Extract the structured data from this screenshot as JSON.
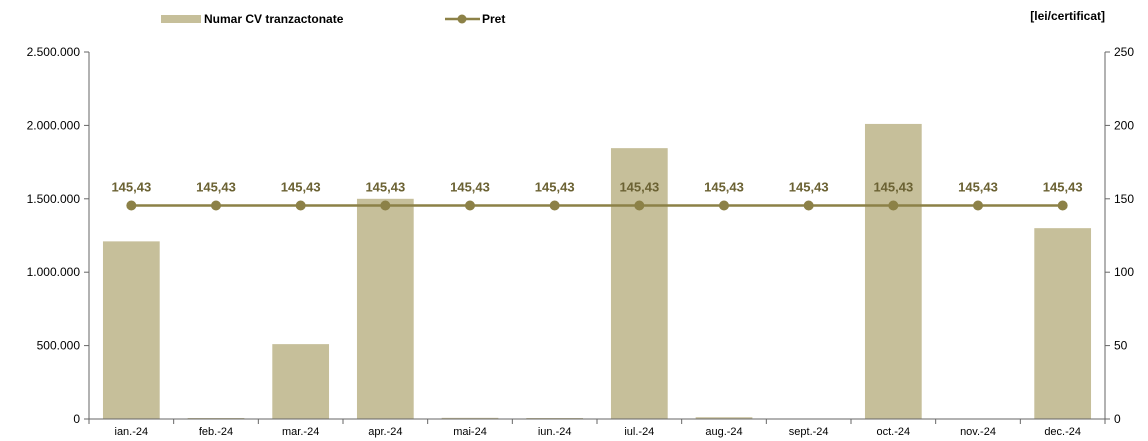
{
  "chart_data": {
    "type": "bar",
    "categories": [
      "ian.-24",
      "feb.-24",
      "mar.-24",
      "apr.-24",
      "mai-24",
      "iun.-24",
      "iul.-24",
      "aug.-24",
      "sept.-24",
      "oct.-24",
      "nov.-24",
      "dec.-24"
    ],
    "series": [
      {
        "name": "Numar CV tranzactonate",
        "type": "bar",
        "axis": "left",
        "color": "#c6bf9a",
        "values": [
          1210000,
          3000,
          510000,
          1500000,
          8000,
          5000,
          1845000,
          12000,
          0,
          2010000,
          0,
          1300000
        ]
      },
      {
        "name": "Pret",
        "type": "line",
        "axis": "right",
        "color": "#8c8147",
        "values": [
          145.43,
          145.43,
          145.43,
          145.43,
          145.43,
          145.43,
          145.43,
          145.43,
          145.43,
          145.43,
          145.43,
          145.43
        ],
        "data_labels": [
          "145,43",
          "145,43",
          "145,43",
          "145,43",
          "145,43",
          "145,43",
          "145,43",
          "145,43",
          "145,43",
          "145,43",
          "145,43",
          "145,43"
        ]
      }
    ],
    "y_left": {
      "lim": [
        0,
        2500000
      ],
      "ticks": [
        0,
        500000,
        1000000,
        1500000,
        2000000,
        2500000
      ],
      "tick_labels": [
        "0",
        "500.000",
        "1.000.000",
        "1.500.000",
        "2.000.000",
        "2.500.000"
      ]
    },
    "y_right": {
      "lim": [
        0,
        250
      ],
      "ticks": [
        0,
        50,
        100,
        150,
        200,
        250
      ],
      "tick_labels": [
        "0",
        "50",
        "100",
        "150",
        "200",
        "250"
      ],
      "unit_label": "[lei/certificat]"
    },
    "grid": false,
    "legend_position": "top-left",
    "legend": [
      {
        "label": "Numar CV tranzactonate",
        "kind": "bar"
      },
      {
        "label": "Pret",
        "kind": "line-marker"
      }
    ]
  }
}
